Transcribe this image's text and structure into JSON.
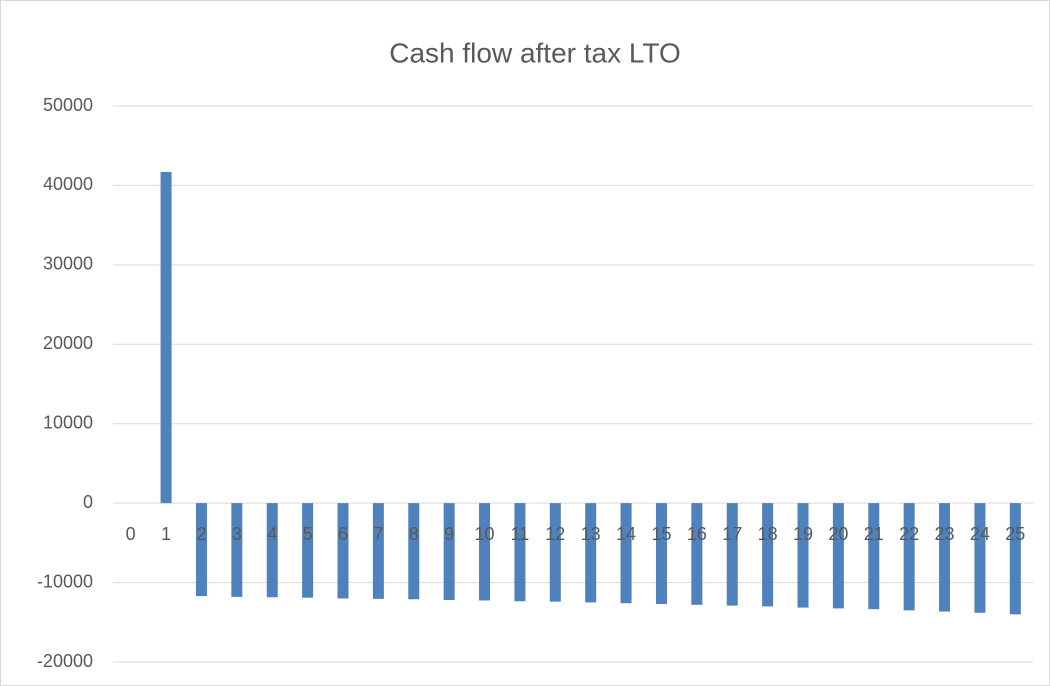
{
  "chart_data": {
    "type": "bar",
    "title": "Cash flow after tax LTO",
    "categories": [
      "0",
      "1",
      "2",
      "3",
      "4",
      "5",
      "6",
      "7",
      "8",
      "9",
      "10",
      "11",
      "12",
      "13",
      "14",
      "15",
      "16",
      "17",
      "18",
      "19",
      "20",
      "21",
      "22",
      "23",
      "24",
      "25"
    ],
    "values": [
      0,
      41700,
      -11700,
      -11800,
      -11850,
      -11900,
      -12000,
      -12050,
      -12100,
      -12200,
      -12250,
      -12350,
      -12400,
      -12500,
      -12600,
      -12700,
      -12800,
      -12900,
      -13000,
      -13150,
      -13250,
      -13350,
      -13500,
      -13650,
      -13800,
      -14000
    ],
    "color": "#4f81bd",
    "ylim": [
      -20000,
      50000
    ],
    "yticks": [
      -20000,
      -10000,
      0,
      10000,
      20000,
      30000,
      40000,
      50000
    ],
    "grid": true
  }
}
